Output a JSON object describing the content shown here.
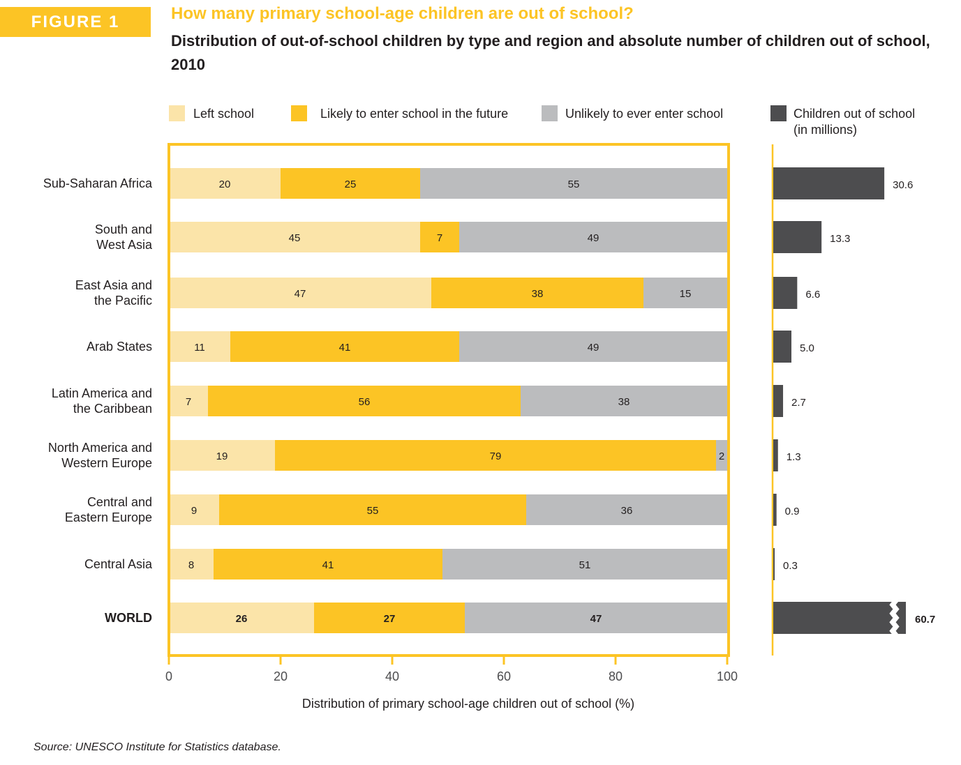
{
  "figure_label": "FIGURE 1",
  "title": "How many primary school-age children are out of school?",
  "subtitle": "Distribution of out-of-school children by type and region and absolute number of children out of school, 2010",
  "source": "Source: UNESCO Institute for Statistics database.",
  "colors": {
    "left_school": "#fbe4a9",
    "likely_enter": "#fcc425",
    "unlikely_enter": "#bbbcbe",
    "children_out": "#4d4d4f",
    "axis": "#fcc425",
    "text": "#231f20"
  },
  "chart_data": [
    {
      "type": "bar",
      "orientation": "horizontal",
      "stacked": true,
      "categories": [
        "Sub-Saharan Africa",
        "South and West Asia",
        "East Asia and the Pacific",
        "Arab States",
        "Latin America and the Caribbean",
        "North America and Western Europe",
        "Central and Eastern Europe",
        "Central Asia",
        "WORLD"
      ],
      "category_lines": [
        [
          "Sub-Saharan Africa"
        ],
        [
          "South and",
          "West Asia"
        ],
        [
          "East Asia and",
          "the Pacific"
        ],
        [
          "Arab States"
        ],
        [
          "Latin America and",
          "the Caribbean"
        ],
        [
          "North America and",
          "Western Europe"
        ],
        [
          "Central and",
          "Eastern Europe"
        ],
        [
          "Central Asia"
        ],
        [
          "WORLD"
        ]
      ],
      "series": [
        {
          "name": "Left school",
          "color_key": "left_school",
          "values": [
            20,
            45,
            47,
            11,
            7,
            19,
            9,
            8,
            26
          ]
        },
        {
          "name": "Likely to enter school in the future",
          "color_key": "likely_enter",
          "values": [
            25,
            7,
            38,
            41,
            56,
            79,
            55,
            41,
            27
          ]
        },
        {
          "name": "Unlikely to ever enter school",
          "color_key": "unlikely_enter",
          "values": [
            55,
            49,
            15,
            49,
            38,
            2,
            36,
            51,
            47
          ]
        }
      ],
      "xlabel": "Distribution of primary school-age children out of school (%)",
      "xlim": [
        0,
        100
      ],
      "xticks": [
        0,
        20,
        40,
        60,
        80,
        100
      ],
      "legend_position": "top"
    },
    {
      "type": "bar",
      "orientation": "horizontal",
      "categories": [
        "Sub-Saharan Africa",
        "South and West Asia",
        "East Asia and the Pacific",
        "Arab States",
        "Latin America and the Caribbean",
        "North America and Western Europe",
        "Central and Eastern Europe",
        "Central Asia",
        "WORLD"
      ],
      "series": [
        {
          "name": "Children out of school (in millions)",
          "color_key": "children_out",
          "values": [
            30.6,
            13.3,
            6.6,
            5.0,
            2.7,
            1.3,
            0.9,
            0.3,
            60.7
          ],
          "labels": [
            "30.6",
            "13.3",
            "6.6",
            "5.0",
            "2.7",
            "1.3",
            "0.9",
            "0.3",
            "60.7"
          ]
        }
      ],
      "legend_lines": [
        "Children out of school",
        "(in millions)"
      ],
      "axis_break_on": "WORLD",
      "legend_position": "top-right"
    }
  ]
}
